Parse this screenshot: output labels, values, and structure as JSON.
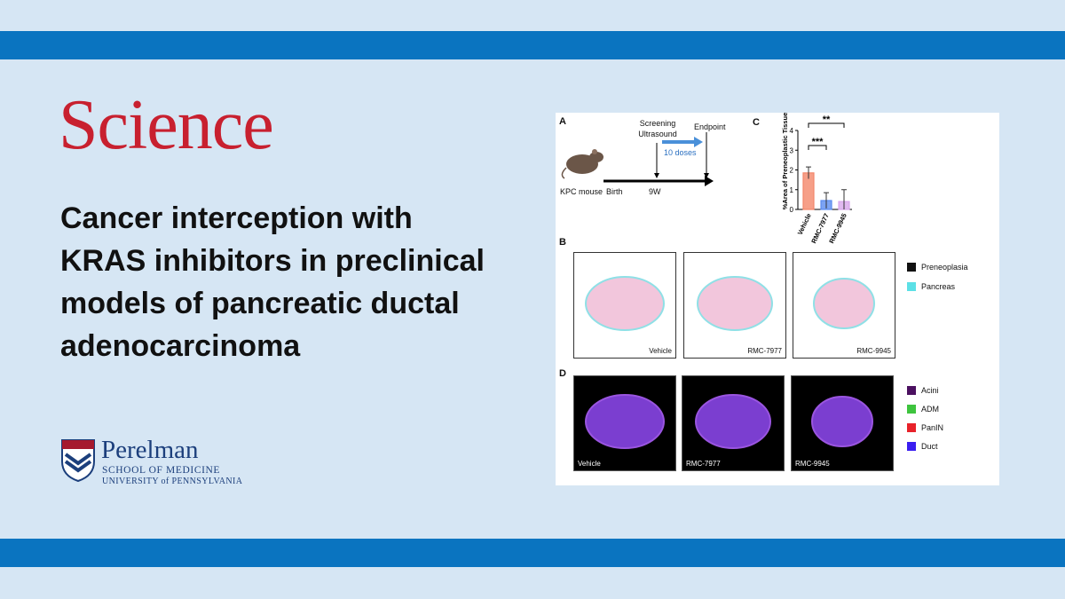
{
  "brand": "Science",
  "headline": "Cancer interception with KRAS inhibitors in preclinical models of pancreatic ductal adenocarcinoma",
  "institution": {
    "name": "Perelman",
    "line1": "SCHOOL OF MEDICINE",
    "line2": "UNIVERSITY of PENNSYLVANIA"
  },
  "figure": {
    "panelA": {
      "label": "A",
      "mouse": "KPC mouse",
      "birth": "Birth",
      "week": "9W",
      "screening": "Screening Ultrasound",
      "endpoint": "Endpoint",
      "doses": "10 doses"
    },
    "panelC": {
      "label": "C",
      "ylabel": "%Area of Preneoplastic Tissue",
      "categories": [
        "Vehicle",
        "RMC-7977",
        "RMC-9945"
      ],
      "values": [
        1.85,
        0.45,
        0.4
      ],
      "errors": [
        0.3,
        0.4,
        0.6
      ],
      "colors": [
        "#f4876a",
        "#5b8cf0",
        "#d9a6ec"
      ],
      "ylim": [
        0,
        4
      ],
      "yticks": [
        0,
        1,
        2,
        3,
        4
      ],
      "significance": [
        "***",
        "**"
      ]
    },
    "panelB": {
      "label": "B",
      "samples": [
        "Vehicle",
        "RMC-7977",
        "RMC-9945"
      ],
      "legend": [
        {
          "name": "Preneoplasia",
          "color": "#111111"
        },
        {
          "name": "Pancreas",
          "color": "#5ce0e6"
        }
      ]
    },
    "panelD": {
      "label": "D",
      "samples": [
        "Vehicle",
        "RMC-7977",
        "RMC-9945"
      ],
      "legend": [
        {
          "name": "Acini",
          "color": "#4b1060"
        },
        {
          "name": "ADM",
          "color": "#3ec43e"
        },
        {
          "name": "PanIN",
          "color": "#e8222a"
        },
        {
          "name": "Duct",
          "color": "#3a1ef0"
        }
      ]
    }
  }
}
